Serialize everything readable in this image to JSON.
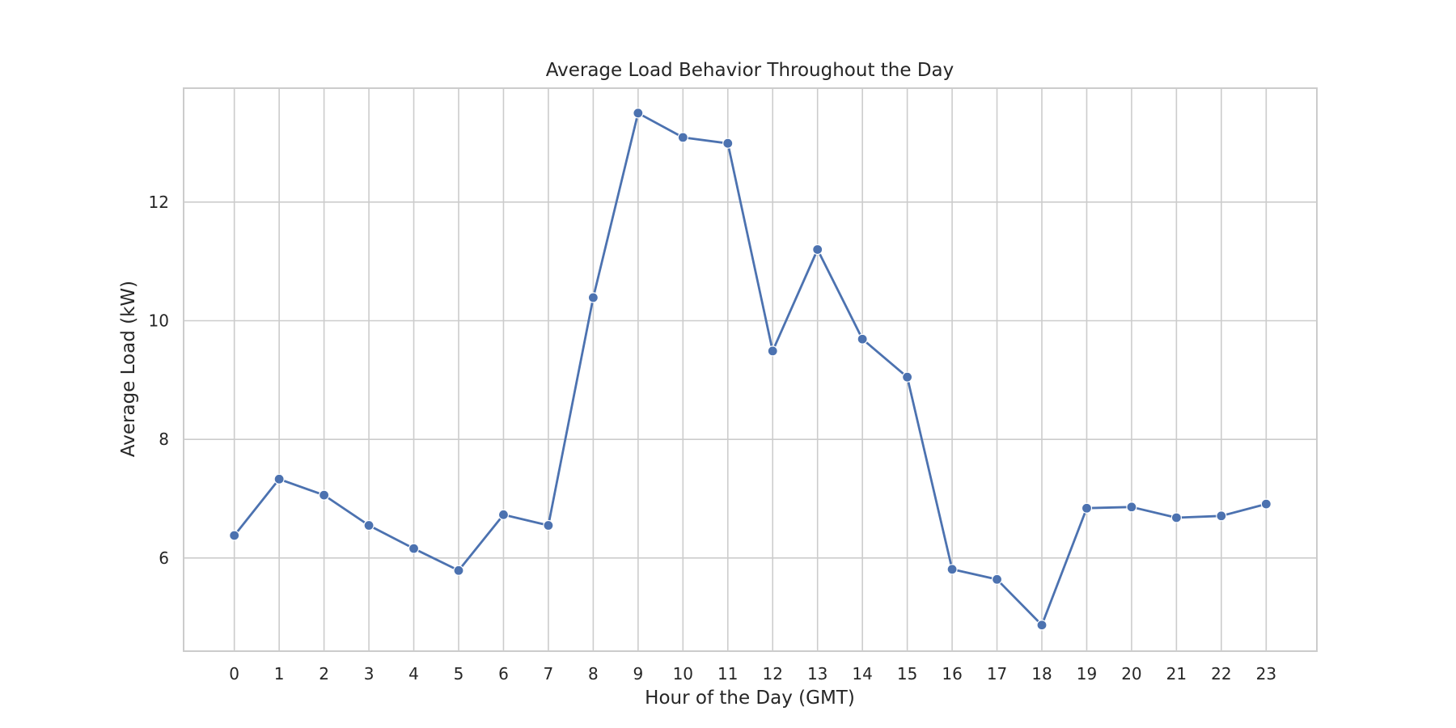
{
  "chart_data": {
    "type": "line",
    "title": "Average Load Behavior Throughout the Day",
    "xlabel": "Hour of the Day (GMT)",
    "ylabel": "Average Load (kW)",
    "x": [
      0,
      1,
      2,
      3,
      4,
      5,
      6,
      7,
      8,
      9,
      10,
      11,
      12,
      13,
      14,
      15,
      16,
      17,
      18,
      19,
      20,
      21,
      22,
      23
    ],
    "series": [
      {
        "values": [
          6.38,
          7.33,
          7.06,
          6.55,
          6.16,
          5.79,
          6.73,
          6.55,
          10.39,
          13.5,
          13.09,
          12.99,
          9.49,
          11.2,
          9.69,
          9.05,
          5.81,
          5.64,
          4.87,
          6.84,
          6.86,
          6.68,
          6.71,
          6.91
        ],
        "color": "#4c72b0",
        "marker": "circle"
      }
    ],
    "xticks": [
      "0",
      "1",
      "2",
      "3",
      "4",
      "5",
      "6",
      "7",
      "8",
      "9",
      "10",
      "11",
      "12",
      "13",
      "14",
      "15",
      "16",
      "17",
      "18",
      "19",
      "20",
      "21",
      "22",
      "23"
    ],
    "yticks": [
      6,
      8,
      10,
      12
    ],
    "ytick_labels": [
      "6",
      "8",
      "10",
      "12"
    ],
    "xlim": [
      -1.13,
      24.13
    ],
    "ylim": [
      4.43,
      13.92
    ],
    "grid": true,
    "legend": "none",
    "colors": {
      "line": "#4c72b0",
      "grid": "#cccccc",
      "frame": "#cccccc",
      "text": "#262626",
      "background": "#ffffff"
    }
  }
}
